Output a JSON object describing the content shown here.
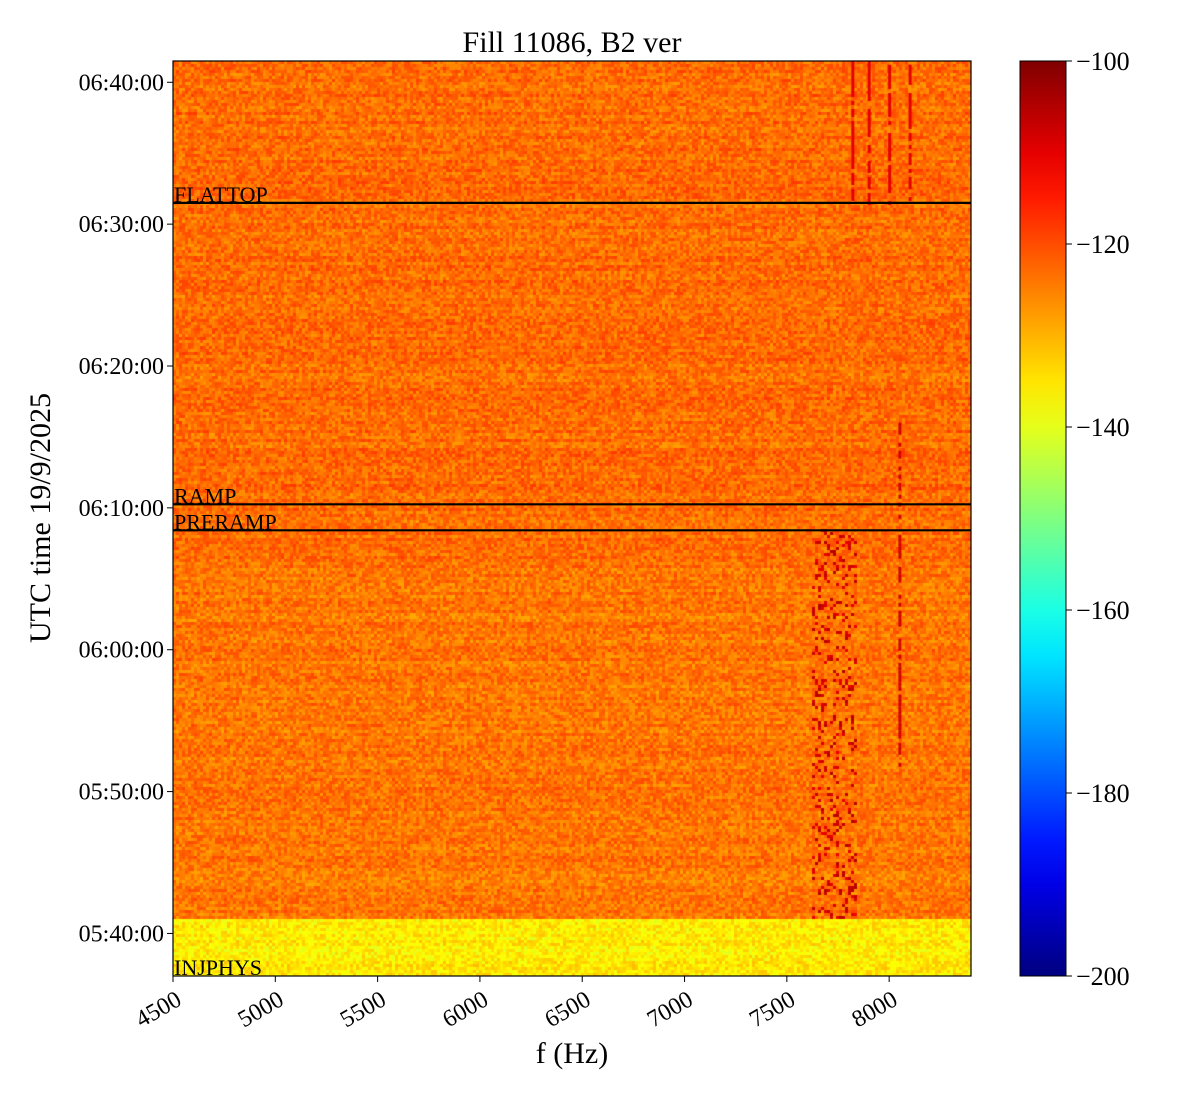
{
  "chart_data": {
    "type": "heatmap",
    "title": "Fill 11086, B2 ver",
    "xlabel": "f (Hz)",
    "ylabel": "UTC time 19/9/2025",
    "x_range": [
      4500,
      8400
    ],
    "y_range": [
      "05:37:00",
      "06:41:30"
    ],
    "x_ticks": [
      4500,
      5000,
      5500,
      6000,
      6500,
      7000,
      7500,
      8000
    ],
    "y_ticks": [
      "05:40:00",
      "05:50:00",
      "06:00:00",
      "06:10:00",
      "06:20:00",
      "06:30:00",
      "06:40:00"
    ],
    "colorbar": {
      "colormap": "jet",
      "range": [
        -200,
        -100
      ],
      "ticks": [
        -100,
        -120,
        -140,
        -160,
        -180,
        -200
      ],
      "tick_labels": [
        "−100",
        "−120",
        "−140",
        "−160",
        "−180",
        "−200"
      ]
    },
    "markers": [
      {
        "label": "FLATTOP",
        "time": "06:31:30"
      },
      {
        "label": "RAMP",
        "time": "06:10:15"
      },
      {
        "label": "PRERAMP",
        "time": "06:08:25"
      },
      {
        "label": "INJPHYS",
        "time": "05:37:00"
      }
    ],
    "regions": [
      {
        "from": "05:37:00",
        "to": "05:41:00",
        "level_db": -136
      },
      {
        "from": "05:41:00",
        "to": "06:06:30",
        "level_db": -124
      },
      {
        "from": "06:06:30",
        "to": "06:41:30",
        "level_db": -123
      }
    ],
    "features": [
      {
        "description": "dense dark-red activity band",
        "f_range": [
          7620,
          7850
        ],
        "time_range": [
          "05:41:00",
          "06:08:30"
        ],
        "level_db": -108
      },
      {
        "description": "vertical line",
        "f": 8050,
        "time_range": [
          "05:52:00",
          "06:16:00"
        ],
        "level_db": -108
      },
      {
        "description": "vertical lines",
        "f": [
          7820,
          7900,
          8000,
          8100
        ],
        "time_range": [
          "06:31:30",
          "06:41:30"
        ],
        "level_db": -110
      }
    ],
    "grid": false
  }
}
